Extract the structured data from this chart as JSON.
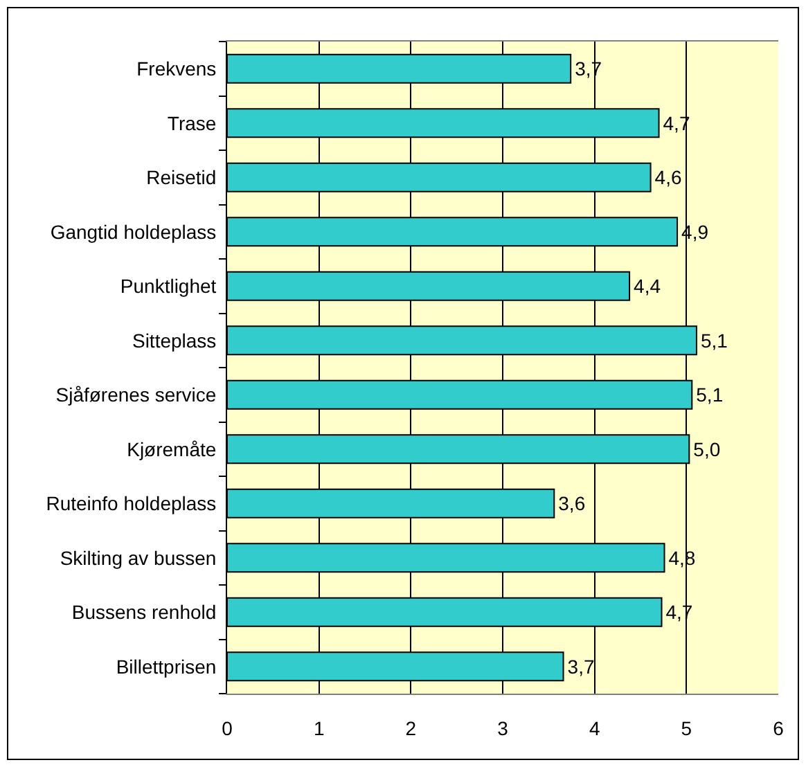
{
  "chart_data": {
    "type": "bar",
    "orientation": "horizontal",
    "categories": [
      "Frekvens",
      "Trase",
      "Reisetid",
      "Gangtid holdeplass",
      "Punktlighet",
      "Sitteplass",
      "Sjåførenes service",
      "Kjøremåte",
      "Ruteinfo holdeplass",
      "Skilting av bussen",
      "Bussens renhold",
      "Billettprisen"
    ],
    "values": [
      3.74,
      4.7,
      4.61,
      4.9,
      4.38,
      5.11,
      5.06,
      5.03,
      3.56,
      4.76,
      4.73,
      3.66
    ],
    "value_labels": [
      "3,7",
      "4,7",
      "4,6",
      "4,9",
      "4,4",
      "5,1",
      "5,1",
      "5,0",
      "3,6",
      "4,8",
      "4,7",
      "3,7"
    ],
    "color": "#33cccc",
    "xlim": [
      0,
      6
    ],
    "xticks": [
      0,
      1,
      2,
      3,
      4,
      5,
      6
    ],
    "grid": "x"
  }
}
